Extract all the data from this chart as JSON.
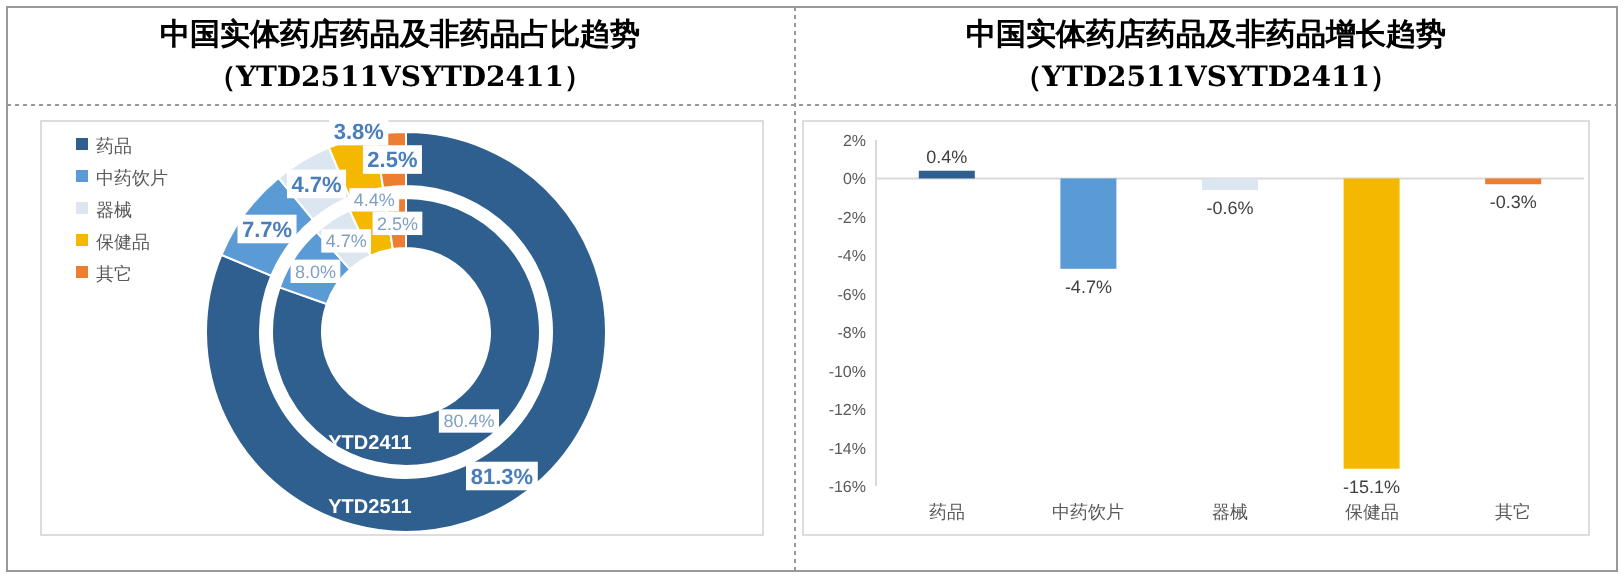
{
  "chart_data": [
    {
      "type": "donut",
      "title": "中国实体药店药品及非药品占比趋势",
      "subtitle": "（YTD2511VSYTD2411）",
      "legend": "top left",
      "categories": [
        "药品",
        "中药饮片",
        "器械",
        "保健品",
        "其它"
      ],
      "colors": [
        "#2e5f8f",
        "#5b9bd5",
        "#dce6f1",
        "#f5b800",
        "#ed7d31"
      ],
      "series": [
        {
          "name": "YTD2511",
          "values": [
            81.3,
            7.7,
            4.7,
            3.8,
            2.5
          ],
          "value_labels": [
            "81.3%",
            "7.7%",
            "4.7%",
            "3.8%",
            "2.5%"
          ]
        }
      ]
    },
    {
      "type": "donut",
      "categories": [
        null,
        null,
        null,
        null,
        null
      ],
      "colors": [
        "#2e5f8f",
        "#5b9bd5",
        "#dce6f1",
        "#f5b800",
        "#ed7d31"
      ],
      "series": [
        {
          "name": "YTD2411",
          "values": [
            80.4,
            8.0,
            4.7,
            4.4,
            2.5
          ],
          "value_labels": [
            "80.4%",
            "8.0%",
            "4.7%",
            "4.4%",
            "2.5%"
          ]
        }
      ]
    },
    {
      "type": "bar",
      "title": "中国实体药店药品及非药品增长趋势",
      "subtitle": "（YTD2511VSYTD2411）",
      "categories": [
        "药品",
        "中药饮片",
        "器械",
        "保健品",
        "其它"
      ],
      "values": [
        0.4,
        -4.7,
        -0.6,
        -15.1,
        -0.3
      ],
      "colors": [
        "#2e5f8f",
        "#5b9bd5",
        "#dce6f1",
        "#f5b800",
        "#ed7d31"
      ],
      "value_labels": [
        "0.4%",
        "-4.7%",
        "-0.6%",
        "-15.1%",
        "-0.3%"
      ],
      "ylim": [
        -16,
        2
      ],
      "yticks": [
        {
          "value": 2,
          "label": "2%"
        },
        {
          "value": 0,
          "label": "0%"
        },
        {
          "value": -2,
          "label": "-2%"
        },
        {
          "value": -4,
          "label": "-4%"
        },
        {
          "value": -6,
          "label": "-6%"
        },
        {
          "value": -8,
          "label": "-8%"
        },
        {
          "value": -10,
          "label": "-10%"
        },
        {
          "value": -12,
          "label": "-12%"
        },
        {
          "value": -14,
          "label": "-14%"
        },
        {
          "value": -16,
          "label": "-16%"
        }
      ]
    }
  ]
}
